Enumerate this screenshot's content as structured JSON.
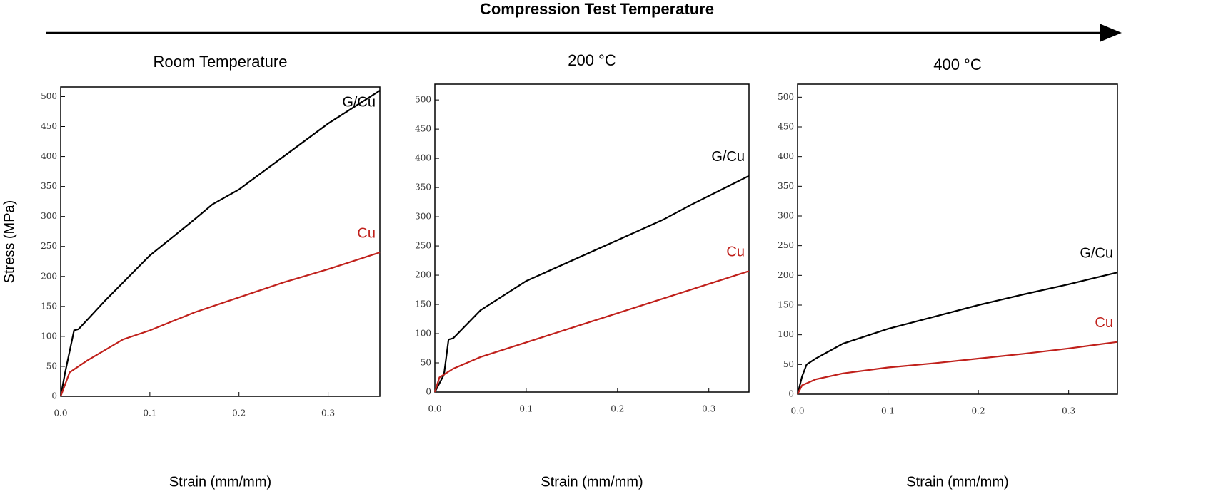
{
  "figure_title": "Compression Test Temperature",
  "chart_data": [
    {
      "type": "line",
      "title": "Room Temperature",
      "xlabel": "Strain (mm/mm)",
      "ylabel": "Stress (MPa)",
      "xlim": [
        0,
        0.358
      ],
      "ylim": [
        0,
        516
      ],
      "xticks": [
        {
          "value": 0,
          "label": "0.0"
        },
        0.1,
        0.2,
        0.3
      ],
      "yticks": [
        0,
        50,
        100,
        150,
        200,
        250,
        300,
        350,
        400,
        450,
        500
      ],
      "series": [
        {
          "name": "G/Cu",
          "color": "#000000",
          "x": [
            0,
            0.005,
            0.015,
            0.02,
            0.05,
            0.1,
            0.15,
            0.17,
            0.2,
            0.25,
            0.3,
            0.358
          ],
          "values": [
            0,
            40,
            110,
            112,
            160,
            235,
            295,
            320,
            345,
            400,
            455,
            510
          ]
        },
        {
          "name": "Cu",
          "color": "#c0201b",
          "x": [
            0,
            0.01,
            0.03,
            0.07,
            0.1,
            0.15,
            0.2,
            0.25,
            0.3,
            0.358
          ],
          "values": [
            0,
            40,
            60,
            95,
            110,
            140,
            165,
            190,
            212,
            240
          ]
        }
      ]
    },
    {
      "type": "line",
      "title": "200 °C",
      "xlabel": "Strain (mm/mm)",
      "xlim": [
        0,
        0.344
      ],
      "ylim": [
        0,
        527
      ],
      "xticks": [
        {
          "value": 0,
          "label": "0.0"
        },
        0.1,
        0.2,
        0.3
      ],
      "yticks": [
        0,
        50,
        100,
        150,
        200,
        250,
        300,
        350,
        400,
        450,
        500
      ],
      "series": [
        {
          "name": "G/Cu",
          "color": "#000000",
          "x": [
            0,
            0.01,
            0.015,
            0.02,
            0.05,
            0.1,
            0.15,
            0.2,
            0.25,
            0.28,
            0.344
          ],
          "values": [
            0,
            30,
            90,
            92,
            140,
            190,
            225,
            260,
            295,
            320,
            370
          ]
        },
        {
          "name": "Cu",
          "color": "#c0201b",
          "x": [
            0,
            0.005,
            0.02,
            0.05,
            0.1,
            0.15,
            0.2,
            0.25,
            0.3,
            0.344
          ],
          "values": [
            0,
            25,
            40,
            60,
            85,
            110,
            135,
            160,
            185,
            207
          ]
        }
      ]
    },
    {
      "type": "line",
      "title": "400 °C",
      "xlabel": "Strain (mm/mm)",
      "xlim": [
        0,
        0.354
      ],
      "ylim": [
        0,
        522
      ],
      "xticks": [
        {
          "value": 0,
          "label": "0.0"
        },
        0.1,
        0.2,
        0.3
      ],
      "yticks": [
        0,
        50,
        100,
        150,
        200,
        250,
        300,
        350,
        400,
        450,
        500
      ],
      "series": [
        {
          "name": "G/Cu",
          "color": "#000000",
          "x": [
            0,
            0.005,
            0.01,
            0.02,
            0.05,
            0.1,
            0.15,
            0.2,
            0.25,
            0.3,
            0.354
          ],
          "values": [
            0,
            30,
            50,
            60,
            85,
            110,
            130,
            150,
            168,
            185,
            205
          ]
        },
        {
          "name": "Cu",
          "color": "#c0201b",
          "x": [
            0,
            0.005,
            0.02,
            0.05,
            0.1,
            0.15,
            0.2,
            0.25,
            0.3,
            0.354
          ],
          "values": [
            0,
            15,
            25,
            35,
            45,
            52,
            60,
            68,
            77,
            88
          ]
        }
      ]
    }
  ]
}
